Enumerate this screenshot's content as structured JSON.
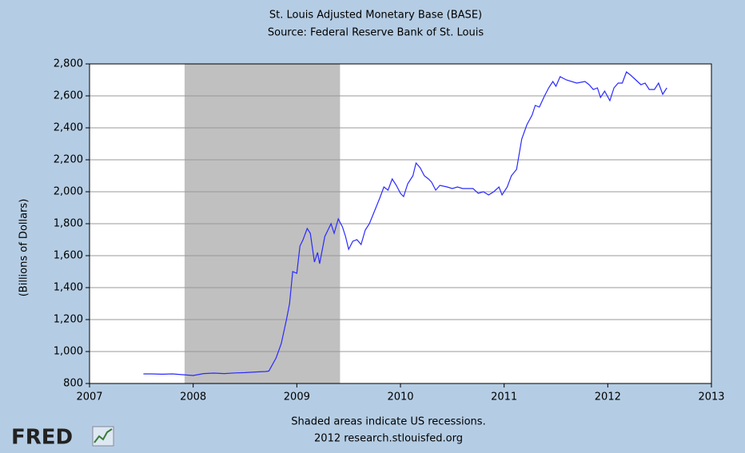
{
  "chart_data": {
    "type": "line",
    "title": "St. Louis Adjusted Monetary Base (BASE)",
    "subtitle": "Source: Federal Reserve Bank of St. Louis",
    "y_label": "(Billions of Dollars)",
    "notes": [
      "Shaded areas indicate US recessions.",
      "2012 research.stlouisfed.org"
    ],
    "logo": "FRED",
    "xlim": [
      2007,
      2013
    ],
    "xticks": [
      2007,
      2008,
      2009,
      2010,
      2011,
      2012,
      2013
    ],
    "ylim": [
      800,
      2800
    ],
    "yticks": [
      800,
      {
        "value": 1000,
        "label": "1,000"
      },
      {
        "value": 1200,
        "label": "1,200"
      },
      {
        "value": 1400,
        "label": "1,400"
      },
      {
        "value": 1600,
        "label": "1,600"
      },
      {
        "value": 1800,
        "label": "1,800"
      },
      {
        "value": 2000,
        "label": "2,000"
      },
      {
        "value": 2200,
        "label": "2,200"
      },
      {
        "value": 2400,
        "label": "2,400"
      },
      {
        "value": 2600,
        "label": "2,600"
      },
      {
        "value": 2800,
        "label": "2,800"
      }
    ],
    "grid": true,
    "recessions": [
      {
        "start": 2007.917,
        "end": 2009.417,
        "color": "#c0c0c0"
      }
    ],
    "x": [
      2007.52,
      2007.6,
      2007.7,
      2007.8,
      2007.9,
      2008.0,
      2008.1,
      2008.2,
      2008.3,
      2008.4,
      2008.5,
      2008.6,
      2008.7,
      2008.73,
      2008.8,
      2008.85,
      2008.9,
      2008.93,
      2008.96,
      2009.0,
      2009.03,
      2009.06,
      2009.1,
      2009.13,
      2009.17,
      2009.2,
      2009.22,
      2009.27,
      2009.3,
      2009.33,
      2009.36,
      2009.4,
      2009.44,
      2009.47,
      2009.5,
      2009.54,
      2009.58,
      2009.62,
      2009.66,
      2009.7,
      2009.75,
      2009.8,
      2009.84,
      2009.88,
      2009.92,
      2009.96,
      2010.0,
      2010.03,
      2010.07,
      2010.12,
      2010.15,
      2010.19,
      2010.23,
      2010.27,
      2010.3,
      2010.34,
      2010.38,
      2010.45,
      2010.5,
      2010.55,
      2010.6,
      2010.7,
      2010.75,
      2010.8,
      2010.85,
      2010.9,
      2010.95,
      2010.98,
      2011.03,
      2011.07,
      2011.12,
      2011.17,
      2011.22,
      2011.27,
      2011.3,
      2011.34,
      2011.39,
      2011.43,
      2011.47,
      2011.5,
      2011.54,
      2011.6,
      2011.7,
      2011.78,
      2011.82,
      2011.86,
      2011.9,
      2011.93,
      2011.97,
      2012.02,
      2012.06,
      2012.1,
      2012.14,
      2012.18,
      2012.22,
      2012.27,
      2012.32,
      2012.36,
      2012.4,
      2012.45,
      2012.49,
      2012.53,
      2012.57
    ],
    "series": [
      {
        "name": "BASE",
        "color": "#2a2aff",
        "values": [
          860,
          860,
          858,
          860,
          855,
          850,
          862,
          865,
          862,
          866,
          868,
          872,
          875,
          878,
          960,
          1050,
          1200,
          1300,
          1500,
          1490,
          1660,
          1700,
          1770,
          1740,
          1560,
          1620,
          1550,
          1720,
          1760,
          1800,
          1740,
          1830,
          1780,
          1720,
          1640,
          1690,
          1700,
          1670,
          1760,
          1800,
          1880,
          1960,
          2030,
          2010,
          2080,
          2040,
          1990,
          1970,
          2050,
          2100,
          2180,
          2150,
          2100,
          2080,
          2060,
          2010,
          2040,
          2030,
          2020,
          2030,
          2020,
          2020,
          1990,
          2000,
          1980,
          2000,
          2030,
          1980,
          2030,
          2100,
          2140,
          2330,
          2420,
          2480,
          2540,
          2530,
          2600,
          2650,
          2690,
          2660,
          2720,
          2700,
          2680,
          2690,
          2670,
          2640,
          2650,
          2590,
          2630,
          2570,
          2650,
          2680,
          2680,
          2750,
          2730,
          2700,
          2670,
          2680,
          2640,
          2640,
          2680,
          2610,
          2650
        ]
      }
    ]
  }
}
